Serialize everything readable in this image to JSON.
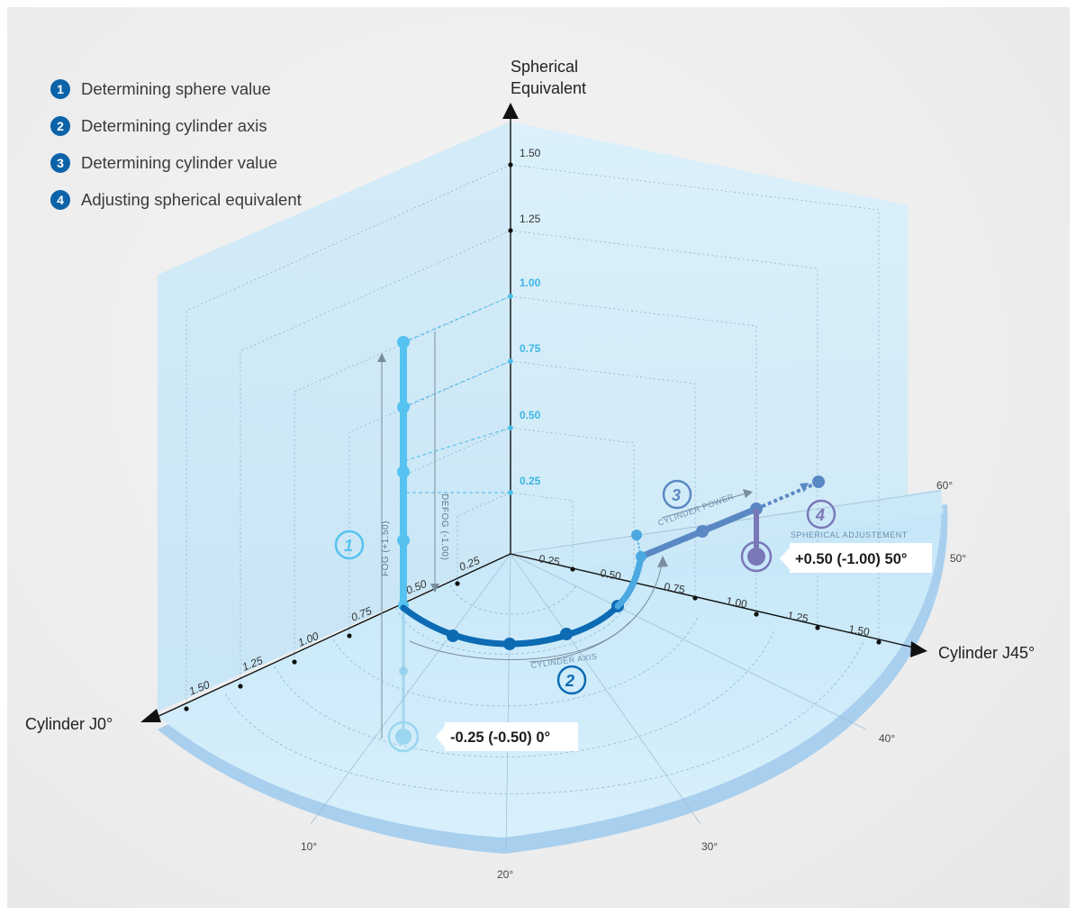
{
  "legend": [
    {
      "num": "1",
      "label": "Determining sphere value"
    },
    {
      "num": "2",
      "label": "Determining cylinder axis"
    },
    {
      "num": "3",
      "label": "Determining cylinder value"
    },
    {
      "num": "4",
      "label": "Adjusting spherical equivalent"
    }
  ],
  "axes": {
    "vertical": {
      "title_line1": "Spherical",
      "title_line2": "Equivalent",
      "ticks": [
        "0.25",
        "0.50",
        "0.75",
        "1.00",
        "1.25",
        "1.50"
      ]
    },
    "left": {
      "title": "Cylinder J0°",
      "ticks": [
        "0.25",
        "0.50",
        "0.75",
        "1.00",
        "1.25",
        "1.50"
      ]
    },
    "right": {
      "title": "Cylinder J45°",
      "ticks": [
        "0.25",
        "0.50",
        "0.75",
        "1.00",
        "1.25",
        "1.50"
      ]
    },
    "angles": [
      "10°",
      "20°",
      "30°",
      "40°",
      "50°",
      "60°"
    ]
  },
  "annotations": {
    "fog": "FOG (+1.50)",
    "defog": "DEFOG (-1.00)",
    "cylinder_axis": "CYLINDER AXIS",
    "cylinder_power": "CYLINDER POWER",
    "spherical_adjustment": "SPHERICAL ADJUSTEMENT",
    "start_result": "-0.25 (-0.50) 0°",
    "end_result": "+0.50 (-1.00) 50°",
    "step1": "1",
    "step2": "2",
    "step3": "3",
    "step4": "4"
  },
  "colors": {
    "step1": "#56c2ef",
    "step2": "#0c6bb3",
    "step3": "#5a88c4",
    "step4": "#7b78b8",
    "legend_badge": "#0c63a8"
  }
}
